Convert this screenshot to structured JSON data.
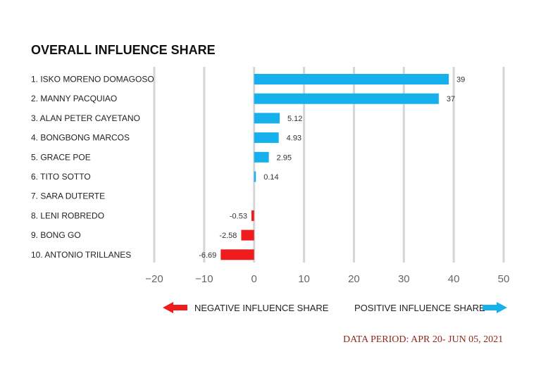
{
  "chart_data": {
    "type": "bar",
    "orientation": "horizontal",
    "title": "OVERALL INFLUENCE SHARE",
    "categories": [
      "1. ISKO MORENO DOMAGOSO",
      "2. MANNY PACQUIAO",
      "3. ALAN PETER CAYETANO",
      "4. BONGBONG MARCOS",
      "5. GRACE POE",
      "6. TITO SOTTO",
      "7. SARA DUTERTE",
      "8. LENI ROBREDO",
      "9. BONG GO",
      "10. ANTONIO TRILLANES"
    ],
    "values": [
      39,
      37,
      5.12,
      4.93,
      2.95,
      0.14,
      null,
      -0.53,
      -2.58,
      -6.69
    ],
    "value_labels": [
      "39",
      "37",
      "5.12",
      "4.93",
      "2.95",
      "0.14",
      "",
      "-0.53",
      "-2.58",
      "-6.69"
    ],
    "xlim": [
      -20,
      50
    ],
    "xticks": [
      -20,
      -10,
      0,
      10,
      20,
      30,
      40,
      50
    ],
    "xtick_labels": [
      "−20",
      "−10",
      "0",
      "10",
      "20",
      "30",
      "40",
      "50"
    ],
    "grid": "vertical",
    "colors": {
      "positive": "#16b1ec",
      "negative": "#ee1c1c",
      "grid": "#d6d6d6"
    },
    "legend": {
      "placement": "bottom",
      "negative_label": "NEGATIVE INFLUENCE SHARE",
      "positive_label": "POSITIVE INFLUENCE SHARE",
      "negative_icon": "left-arrow-icon",
      "positive_icon": "right-arrow-icon"
    },
    "footnote": "DATA PERIOD: APR 20- JUN 05, 2021"
  }
}
